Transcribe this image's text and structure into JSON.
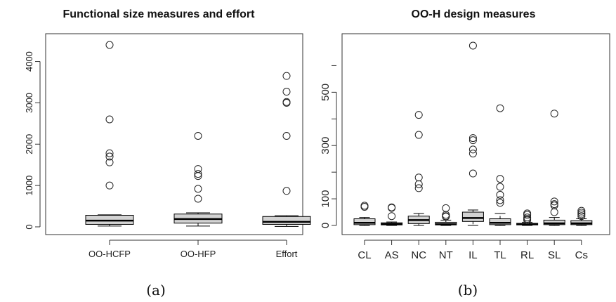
{
  "chart_data": [
    {
      "type": "boxplot",
      "title": "Functional size measures and effort",
      "caption": "(a)",
      "xlabel": "",
      "ylabel": "",
      "ylim": [
        0,
        4500
      ],
      "yticks": [
        0,
        1000,
        2000,
        3000,
        4000
      ],
      "categories": [
        "OO-HCFP",
        "OO-HFP",
        "Effort"
      ],
      "boxes": [
        {
          "name": "OO-HCFP",
          "whisker_low": 20,
          "q1": 60,
          "median": 150,
          "q3": 280,
          "whisker_high": 290,
          "outliers": [
            1000,
            1560,
            1700,
            1780,
            2600,
            4400
          ]
        },
        {
          "name": "OO-HFP",
          "whisker_low": 20,
          "q1": 90,
          "median": 190,
          "q3": 310,
          "whisker_high": 340,
          "outliers": [
            680,
            920,
            1230,
            1280,
            1400,
            2200
          ]
        },
        {
          "name": "Effort",
          "whisker_low": 10,
          "q1": 60,
          "median": 120,
          "q3": 250,
          "whisker_high": 270,
          "outliers": [
            870,
            2200,
            3000,
            3020,
            3270,
            3650
          ]
        }
      ],
      "colors": {
        "box": "#d3d3d3",
        "line": "#000000"
      }
    },
    {
      "type": "boxplot",
      "title": "OO-H design measures",
      "caption": "(b)",
      "xlabel": "",
      "ylabel": "",
      "ylim": [
        0,
        680
      ],
      "yticks": [
        0,
        100,
        300,
        500
      ],
      "categories": [
        "CL",
        "AS",
        "NC",
        "NT",
        "IL",
        "TL",
        "RL",
        "SL",
        "Cs"
      ],
      "boxes": [
        {
          "name": "CL",
          "whisker_low": 0,
          "q1": 3,
          "median": 10,
          "q3": 25,
          "whisker_high": 30,
          "outliers": [
            70,
            74
          ]
        },
        {
          "name": "AS",
          "whisker_low": 0,
          "q1": 2,
          "median": 5,
          "q3": 10,
          "whisker_high": 13,
          "outliers": [
            35,
            66,
            68
          ]
        },
        {
          "name": "NC",
          "whisker_low": 0,
          "q1": 7,
          "median": 20,
          "q3": 35,
          "whisker_high": 45,
          "outliers": [
            140,
            155,
            180,
            340,
            415
          ]
        },
        {
          "name": "NT",
          "whisker_low": 0,
          "q1": 2,
          "median": 5,
          "q3": 12,
          "whisker_high": 20,
          "outliers": [
            33,
            35,
            40,
            65
          ]
        },
        {
          "name": "IL",
          "whisker_low": 0,
          "q1": 15,
          "median": 28,
          "q3": 50,
          "whisker_high": 58,
          "outliers": [
            195,
            270,
            285,
            320,
            328,
            675
          ]
        },
        {
          "name": "TL",
          "whisker_low": 0,
          "q1": 3,
          "median": 10,
          "q3": 25,
          "whisker_high": 45,
          "outliers": [
            85,
            95,
            115,
            145,
            175,
            440
          ]
        },
        {
          "name": "RL",
          "whisker_low": 0,
          "q1": 2,
          "median": 5,
          "q3": 8,
          "whisker_high": 12,
          "outliers": [
            20,
            25,
            30,
            40,
            45
          ]
        },
        {
          "name": "SL",
          "whisker_low": 0,
          "q1": 3,
          "median": 8,
          "q3": 20,
          "whisker_high": 30,
          "outliers": [
            50,
            75,
            80,
            90,
            420
          ]
        },
        {
          "name": "Cs",
          "whisker_low": 0,
          "q1": 3,
          "median": 8,
          "q3": 18,
          "whisker_high": 25,
          "outliers": [
            35,
            42,
            48,
            55
          ]
        }
      ],
      "colors": {
        "box": "#d3d3d3",
        "line": "#000000"
      }
    }
  ]
}
